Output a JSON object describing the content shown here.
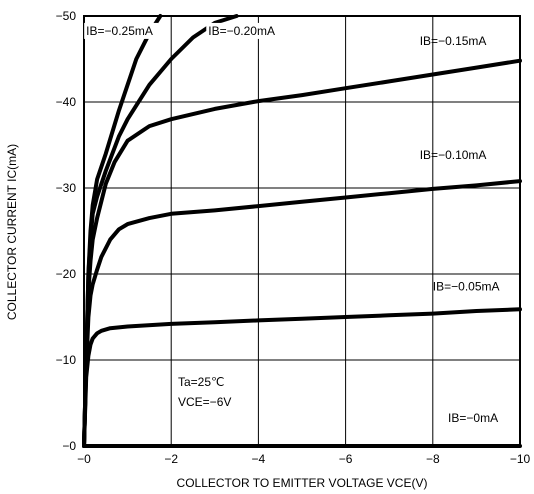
{
  "chart_data": {
    "type": "line",
    "title": "",
    "xlabel": "COLLECTOR TO EMITTER VOLTAGE VCE(V)",
    "ylabel": "COLLECTOR CURRENT IC(mA)",
    "xlim": [
      0,
      -10
    ],
    "ylim": [
      0,
      -50
    ],
    "xticks": [
      0,
      -2,
      -4,
      -6,
      -8,
      -10
    ],
    "xtick_labels": [
      "−0",
      "−2",
      "−4",
      "−6",
      "−8",
      "−10"
    ],
    "yticks": [
      0,
      -10,
      -20,
      -30,
      -40,
      -50
    ],
    "ytick_labels": [
      "−0",
      "−10",
      "−20",
      "−30",
      "−40",
      "−50"
    ],
    "grid": true,
    "series": [
      {
        "name": "IB=−0.25mA",
        "x": [
          0,
          -0.05,
          -0.1,
          -0.15,
          -0.2,
          -0.3,
          -0.5,
          -0.8,
          -1.0,
          -1.2,
          -1.5,
          -1.75
        ],
        "y": [
          0,
          -10,
          -20,
          -25,
          -28,
          -31,
          -34,
          -39,
          -42,
          -45,
          -48,
          -50
        ]
      },
      {
        "name": "IB=−0.20mA",
        "x": [
          0,
          -0.05,
          -0.1,
          -0.15,
          -0.2,
          -0.3,
          -0.5,
          -0.8,
          -1.0,
          -1.5,
          -2.0,
          -2.5,
          -3.0,
          -3.5
        ],
        "y": [
          0,
          -10,
          -20,
          -24,
          -27,
          -29,
          -32,
          -36,
          -38,
          -42,
          -45,
          -47.5,
          -49.2,
          -50
        ]
      },
      {
        "name": "IB=−0.15mA",
        "x": [
          0,
          -0.05,
          -0.1,
          -0.15,
          -0.2,
          -0.3,
          -0.5,
          -0.7,
          -1.0,
          -1.5,
          -2.0,
          -3.0,
          -4.0,
          -5.0,
          -6.0,
          -7.0,
          -8.0,
          -9.0,
          -10.0
        ],
        "y": [
          0,
          -10,
          -18,
          -21.5,
          -24,
          -26.5,
          -30.5,
          -33,
          -35.5,
          -37.2,
          -38,
          -39.2,
          -40.1,
          -40.8,
          -41.6,
          -42.4,
          -43.2,
          -44.0,
          -44.8
        ]
      },
      {
        "name": "IB=−0.10mA",
        "x": [
          0,
          -0.05,
          -0.1,
          -0.15,
          -0.2,
          -0.3,
          -0.4,
          -0.6,
          -0.8,
          -1.0,
          -1.5,
          -2.0,
          -3.0,
          -4.0,
          -5.0,
          -6.0,
          -7.0,
          -8.0,
          -9.0,
          -10.0
        ],
        "y": [
          0,
          -9,
          -15,
          -17.5,
          -18.8,
          -20.5,
          -22,
          -24,
          -25.2,
          -25.8,
          -26.5,
          -27,
          -27.4,
          -27.9,
          -28.4,
          -28.9,
          -29.4,
          -29.9,
          -30.3,
          -30.8
        ]
      },
      {
        "name": "IB=−0.05mA",
        "x": [
          0,
          -0.05,
          -0.1,
          -0.15,
          -0.2,
          -0.3,
          -0.4,
          -0.6,
          -1.0,
          -2.0,
          -3.0,
          -4.0,
          -5.0,
          -6.0,
          -7.0,
          -8.0,
          -9.0,
          -10.0
        ],
        "y": [
          0,
          -8,
          -10.5,
          -11.8,
          -12.5,
          -13.1,
          -13.4,
          -13.7,
          -13.9,
          -14.2,
          -14.4,
          -14.6,
          -14.8,
          -15.0,
          -15.2,
          -15.4,
          -15.7,
          -15.9
        ]
      },
      {
        "name": "IB=−0mA",
        "x": [
          0,
          -10
        ],
        "y": [
          0,
          0
        ]
      }
    ],
    "annotations": {
      "ta": "Ta=25℃",
      "vce": "VCE=−6V"
    }
  }
}
